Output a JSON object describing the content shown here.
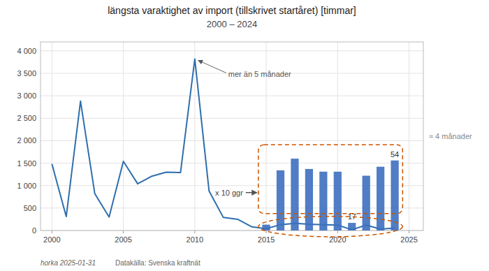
{
  "chart_data": {
    "type": "line",
    "title": "längsta varaktighet av import (tillskrivet startåret) [timmar]",
    "subtitle": "2000 – 2024",
    "series": [
      {
        "type": "line",
        "color": "#2e6fad",
        "x": [
          2000,
          2001,
          2002,
          2003,
          2004,
          2005,
          2006,
          2007,
          2008,
          2009,
          2010,
          2011,
          2012,
          2013,
          2014,
          2015,
          2016,
          2017,
          2018,
          2019,
          2020,
          2021,
          2022,
          2023,
          2024
        ],
        "values": [
          1480,
          310,
          2880,
          820,
          300,
          1540,
          1040,
          1210,
          1300,
          1290,
          3820,
          880,
          290,
          250,
          80,
          40,
          130,
          160,
          140,
          130,
          120,
          17,
          120,
          30,
          54
        ],
        "value_labels": [
          null,
          null,
          null,
          null,
          null,
          null,
          null,
          null,
          null,
          null,
          null,
          null,
          null,
          null,
          null,
          null,
          null,
          null,
          null,
          null,
          null,
          "17",
          null,
          null,
          "54"
        ]
      },
      {
        "type": "bar",
        "color": "#3d6fbf",
        "x": [
          2015,
          2016,
          2017,
          2018,
          2019,
          2020,
          2021,
          2022,
          2023,
          2024
        ],
        "values": [
          130,
          1340,
          1600,
          1370,
          1310,
          1310,
          170,
          1220,
          1420,
          1560
        ]
      }
    ],
    "xlim": [
      1999.2,
      2026.0
    ],
    "xticks": [
      2000,
      2005,
      2010,
      2015,
      2020,
      2025
    ],
    "ylim": [
      0,
      4200
    ],
    "yticks": [
      0,
      500,
      {
        "value": 1000,
        "label": "1 000"
      },
      {
        "value": 1500,
        "label": "1 500"
      },
      {
        "value": 2000,
        "label": "2 000"
      },
      {
        "value": 2500,
        "label": "2 500"
      },
      {
        "value": 3000,
        "label": "3 000"
      },
      {
        "value": 3500,
        "label": "3 500"
      },
      {
        "value": 4000,
        "label": "4 000"
      }
    ],
    "grid": true,
    "annotations": [
      "mer än 5 månader",
      "≈ 4 månader",
      "x 10 ggr"
    ],
    "highlight_color": "#cc5500",
    "footer": [
      "horka 2025-01-31",
      "Datakälla: Svenska kraftnät"
    ]
  }
}
